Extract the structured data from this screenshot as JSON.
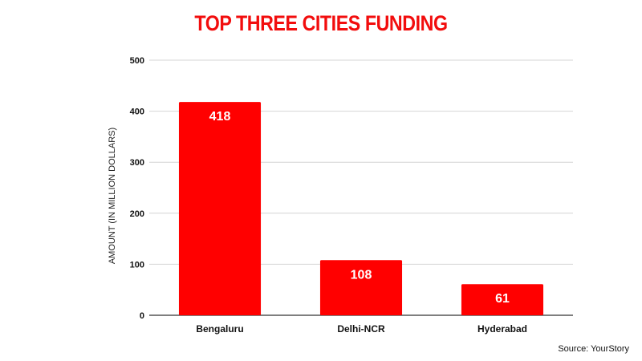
{
  "chart_data": {
    "type": "bar",
    "title": "TOP THREE CITIES FUNDING",
    "categories": [
      "Bengaluru",
      "Delhi-NCR",
      "Hyderabad"
    ],
    "values": [
      418,
      108,
      61
    ],
    "data_labels": [
      "418",
      "108",
      "61"
    ],
    "xlabel": "",
    "ylabel": "AMOUNT (IN MILLION DOLLARS)",
    "ylim": [
      0,
      500
    ],
    "yticks": [
      0,
      100,
      200,
      300,
      400,
      500
    ],
    "grid": true,
    "legend": "none",
    "bar_color": "#ff0000",
    "title_color": "#f20d0d"
  },
  "source": "Source: YourStory"
}
